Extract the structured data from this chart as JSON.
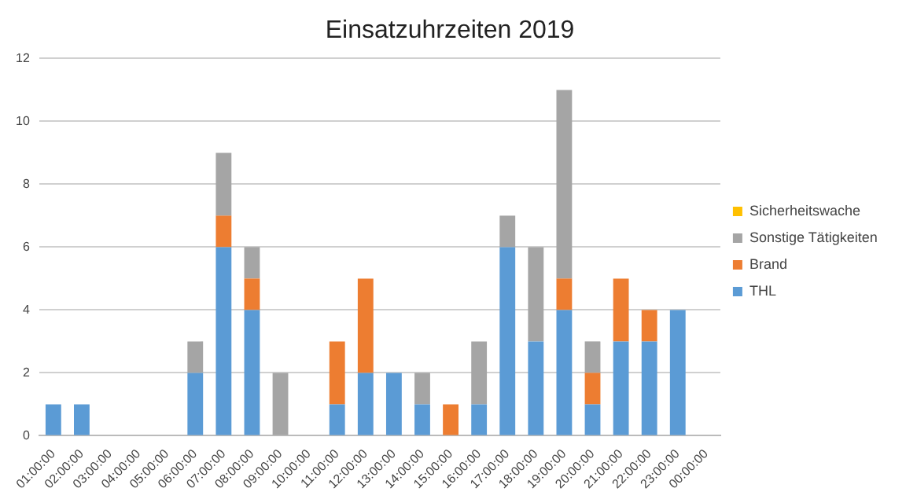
{
  "chart_data": {
    "type": "bar",
    "title": "Einsatzuhrzeiten 2019",
    "stacked": true,
    "grid": "y",
    "legend": "right",
    "categories": [
      "01:00:00",
      "02:00:00",
      "03:00:00",
      "04:00:00",
      "05:00:00",
      "06:00:00",
      "07:00:00",
      "08:00:00",
      "09:00:00",
      "10:00:00",
      "11:00:00",
      "12:00:00",
      "13:00:00",
      "14:00:00",
      "15:00:00",
      "16:00:00",
      "17:00:00",
      "18:00:00",
      "19:00:00",
      "20:00:00",
      "21:00:00",
      "22:00:00",
      "23:00:00",
      "00:00:00"
    ],
    "ylim": [
      0,
      12
    ],
    "yticks": [
      0,
      2,
      4,
      6,
      8,
      10,
      12
    ],
    "series": [
      {
        "name": "THL",
        "color": "#5b9bd5",
        "values": [
          1,
          1,
          0,
          0,
          0,
          2,
          6,
          4,
          0,
          0,
          1,
          2,
          2,
          1,
          0,
          1,
          6,
          3,
          4,
          1,
          3,
          3,
          4,
          0
        ]
      },
      {
        "name": "Brand",
        "color": "#ed7d31",
        "values": [
          0,
          0,
          0,
          0,
          0,
          0,
          1,
          1,
          0,
          0,
          2,
          3,
          0,
          0,
          1,
          0,
          0,
          0,
          1,
          1,
          2,
          1,
          0,
          0
        ]
      },
      {
        "name": "Sonstige Tätigkeiten",
        "color": "#a5a5a5",
        "values": [
          0,
          0,
          0,
          0,
          0,
          1,
          2,
          1,
          2,
          0,
          0,
          0,
          0,
          1,
          0,
          2,
          1,
          3,
          6,
          1,
          0,
          0,
          0,
          0
        ]
      },
      {
        "name": "Sicherheitswache",
        "color": "#ffc000",
        "values": [
          0,
          0,
          0,
          0,
          0,
          0,
          0,
          0,
          0,
          0,
          0,
          0,
          0,
          0,
          0,
          0,
          0,
          0,
          0,
          0,
          0,
          0,
          0,
          0
        ]
      }
    ]
  }
}
